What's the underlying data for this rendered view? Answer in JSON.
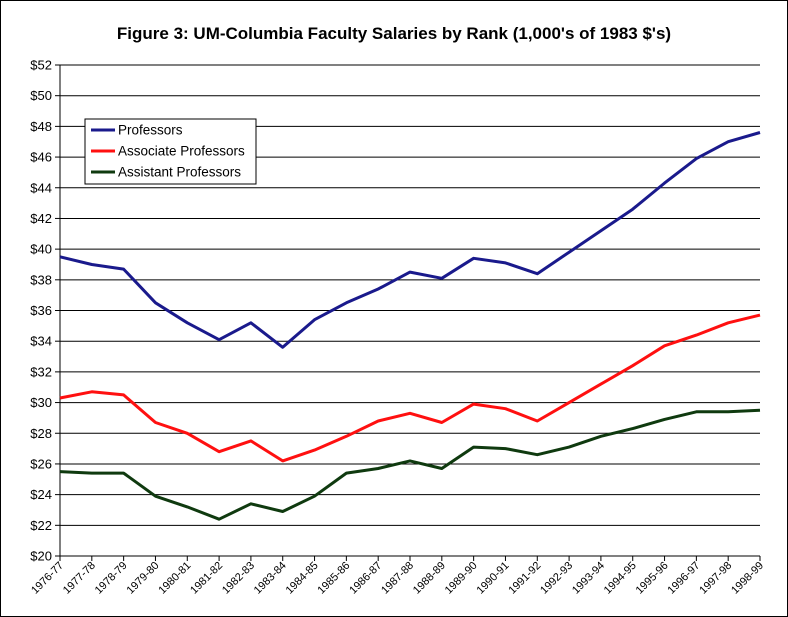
{
  "chart_data": {
    "type": "line",
    "title": "Figure 3: UM-Columbia Faculty Salaries by Rank (1,000's of 1983 $'s)",
    "xlabel": "",
    "ylabel": "",
    "ylim": [
      20,
      52
    ],
    "ytick_step": 2,
    "ytick_labels": [
      "$20",
      "$22",
      "$24",
      "$26",
      "$28",
      "$30",
      "$32",
      "$34",
      "$36",
      "$38",
      "$40",
      "$42",
      "$44",
      "$46",
      "$48",
      "$50",
      "$52"
    ],
    "grid": true,
    "legend_position": "top-left",
    "categories": [
      "1976-77",
      "1977-78",
      "1978-79",
      "1979-80",
      "1980-81",
      "1981-82",
      "1982-83",
      "1983-84",
      "1984-85",
      "1985-86",
      "1986-87",
      "1987-88",
      "1988-89",
      "1989-90",
      "1990-91",
      "1991-92",
      "1992-93",
      "1993-94",
      "1994-95",
      "1995-96",
      "1996-97",
      "1997-98",
      "1998-99"
    ],
    "series": [
      {
        "name": "Professors",
        "color": "#1a1a8c",
        "values": [
          39.5,
          39.0,
          38.7,
          36.5,
          35.2,
          34.1,
          35.2,
          33.6,
          35.4,
          36.5,
          37.4,
          38.5,
          38.1,
          39.4,
          39.1,
          38.4,
          39.8,
          41.2,
          42.6,
          44.3,
          45.9,
          47.0,
          47.6
        ]
      },
      {
        "name": "Associate Professors",
        "color": "#ff1010",
        "values": [
          30.3,
          30.7,
          30.5,
          28.7,
          28.0,
          26.8,
          27.5,
          26.2,
          26.9,
          27.8,
          28.8,
          29.3,
          28.7,
          29.9,
          29.6,
          28.8,
          30.0,
          31.2,
          32.4,
          33.7,
          34.4,
          35.2,
          35.7
        ]
      },
      {
        "name": "Assistant Professors",
        "color": "#0f3a0f",
        "values": [
          25.5,
          25.4,
          25.4,
          23.9,
          23.2,
          22.4,
          23.4,
          22.9,
          23.9,
          25.4,
          25.7,
          26.2,
          25.7,
          27.1,
          27.0,
          26.6,
          27.1,
          27.8,
          28.3,
          28.9,
          29.4,
          29.4,
          29.5
        ]
      }
    ]
  }
}
